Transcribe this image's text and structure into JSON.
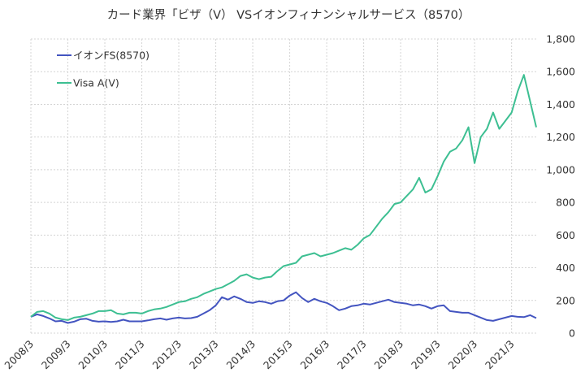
{
  "chart_data": {
    "type": "line",
    "title": "カード業界「ビザ（V） VSイオンフィナンシャルサービス（8570）",
    "xlabel": "",
    "ylabel": "",
    "ylim": [
      0,
      1800
    ],
    "yticks": [
      0,
      200,
      400,
      600,
      800,
      1000,
      1200,
      1400,
      1600,
      1800
    ],
    "ytick_labels": [
      "0",
      "200",
      "400",
      "600",
      "800",
      "1,000",
      "1,200",
      "1,400",
      "1,600",
      "1,800"
    ],
    "xlim": [
      "2008/3",
      "2021/11"
    ],
    "xtick_labels": [
      "2008/3",
      "2009/3",
      "2010/3",
      "2011/3",
      "2012/3",
      "2013/3",
      "2014/3",
      "2015/3",
      "2016/3",
      "2017/3",
      "2018/3",
      "2019/3",
      "2020/3",
      "2021/3"
    ],
    "grid": true,
    "legend_position": "top-left",
    "series": [
      {
        "name": "イオンFS(8570)",
        "color": "#4354c0",
        "points": [
          [
            "2008/3",
            100
          ],
          [
            "2008/5",
            115
          ],
          [
            "2008/7",
            105
          ],
          [
            "2008/9",
            90
          ],
          [
            "2008/11",
            72
          ],
          [
            "2009/1",
            75
          ],
          [
            "2009/3",
            62
          ],
          [
            "2009/5",
            70
          ],
          [
            "2009/7",
            85
          ],
          [
            "2009/9",
            88
          ],
          [
            "2009/11",
            75
          ],
          [
            "2010/1",
            70
          ],
          [
            "2010/3",
            72
          ],
          [
            "2010/5",
            68
          ],
          [
            "2010/7",
            72
          ],
          [
            "2010/9",
            82
          ],
          [
            "2010/11",
            72
          ],
          [
            "2011/1",
            72
          ],
          [
            "2011/3",
            72
          ],
          [
            "2011/5",
            78
          ],
          [
            "2011/7",
            85
          ],
          [
            "2011/9",
            90
          ],
          [
            "2011/11",
            82
          ],
          [
            "2012/1",
            90
          ],
          [
            "2012/3",
            95
          ],
          [
            "2012/5",
            90
          ],
          [
            "2012/7",
            92
          ],
          [
            "2012/9",
            100
          ],
          [
            "2012/11",
            120
          ],
          [
            "2013/1",
            140
          ],
          [
            "2013/3",
            170
          ],
          [
            "2013/5",
            220
          ],
          [
            "2013/7",
            205
          ],
          [
            "2013/9",
            225
          ],
          [
            "2013/11",
            210
          ],
          [
            "2014/1",
            190
          ],
          [
            "2014/3",
            185
          ],
          [
            "2014/5",
            195
          ],
          [
            "2014/7",
            190
          ],
          [
            "2014/9",
            180
          ],
          [
            "2014/11",
            195
          ],
          [
            "2015/1",
            200
          ],
          [
            "2015/3",
            230
          ],
          [
            "2015/5",
            250
          ],
          [
            "2015/7",
            215
          ],
          [
            "2015/9",
            190
          ],
          [
            "2015/11",
            210
          ],
          [
            "2016/1",
            195
          ],
          [
            "2016/3",
            185
          ],
          [
            "2016/5",
            165
          ],
          [
            "2016/7",
            140
          ],
          [
            "2016/9",
            150
          ],
          [
            "2016/11",
            165
          ],
          [
            "2017/1",
            170
          ],
          [
            "2017/3",
            180
          ],
          [
            "2017/5",
            175
          ],
          [
            "2017/7",
            185
          ],
          [
            "2017/9",
            195
          ],
          [
            "2017/11",
            205
          ],
          [
            "2018/1",
            190
          ],
          [
            "2018/3",
            185
          ],
          [
            "2018/5",
            180
          ],
          [
            "2018/7",
            170
          ],
          [
            "2018/9",
            175
          ],
          [
            "2018/11",
            165
          ],
          [
            "2019/1",
            150
          ],
          [
            "2019/3",
            165
          ],
          [
            "2019/5",
            170
          ],
          [
            "2019/7",
            135
          ],
          [
            "2019/9",
            130
          ],
          [
            "2019/11",
            125
          ],
          [
            "2020/1",
            125
          ],
          [
            "2020/3",
            110
          ],
          [
            "2020/5",
            95
          ],
          [
            "2020/7",
            80
          ],
          [
            "2020/9",
            75
          ],
          [
            "2020/11",
            85
          ],
          [
            "2021/1",
            95
          ],
          [
            "2021/3",
            105
          ],
          [
            "2021/5",
            100
          ],
          [
            "2021/7",
            98
          ],
          [
            "2021/9",
            110
          ],
          [
            "2021/11",
            92
          ]
        ]
      },
      {
        "name": "Visa A(V)",
        "color": "#3dbf92",
        "points": [
          [
            "2008/3",
            100
          ],
          [
            "2008/5",
            130
          ],
          [
            "2008/7",
            135
          ],
          [
            "2008/9",
            120
          ],
          [
            "2008/11",
            95
          ],
          [
            "2009/1",
            85
          ],
          [
            "2009/3",
            80
          ],
          [
            "2009/5",
            95
          ],
          [
            "2009/7",
            100
          ],
          [
            "2009/9",
            110
          ],
          [
            "2009/11",
            120
          ],
          [
            "2010/1",
            135
          ],
          [
            "2010/3",
            135
          ],
          [
            "2010/5",
            140
          ],
          [
            "2010/7",
            120
          ],
          [
            "2010/9",
            115
          ],
          [
            "2010/11",
            125
          ],
          [
            "2011/1",
            125
          ],
          [
            "2011/3",
            120
          ],
          [
            "2011/5",
            135
          ],
          [
            "2011/7",
            145
          ],
          [
            "2011/9",
            150
          ],
          [
            "2011/11",
            160
          ],
          [
            "2012/1",
            175
          ],
          [
            "2012/3",
            190
          ],
          [
            "2012/5",
            195
          ],
          [
            "2012/7",
            210
          ],
          [
            "2012/9",
            220
          ],
          [
            "2012/11",
            240
          ],
          [
            "2013/1",
            255
          ],
          [
            "2013/3",
            270
          ],
          [
            "2013/5",
            280
          ],
          [
            "2013/7",
            300
          ],
          [
            "2013/9",
            320
          ],
          [
            "2013/11",
            350
          ],
          [
            "2014/1",
            360
          ],
          [
            "2014/3",
            340
          ],
          [
            "2014/5",
            330
          ],
          [
            "2014/7",
            340
          ],
          [
            "2014/9",
            345
          ],
          [
            "2014/11",
            380
          ],
          [
            "2015/1",
            410
          ],
          [
            "2015/3",
            420
          ],
          [
            "2015/5",
            430
          ],
          [
            "2015/7",
            470
          ],
          [
            "2015/9",
            480
          ],
          [
            "2015/11",
            490
          ],
          [
            "2016/1",
            470
          ],
          [
            "2016/3",
            480
          ],
          [
            "2016/5",
            490
          ],
          [
            "2016/7",
            505
          ],
          [
            "2016/9",
            520
          ],
          [
            "2016/11",
            510
          ],
          [
            "2017/1",
            540
          ],
          [
            "2017/3",
            580
          ],
          [
            "2017/5",
            600
          ],
          [
            "2017/7",
            650
          ],
          [
            "2017/9",
            700
          ],
          [
            "2017/11",
            740
          ],
          [
            "2018/1",
            790
          ],
          [
            "2018/3",
            800
          ],
          [
            "2018/5",
            840
          ],
          [
            "2018/7",
            880
          ],
          [
            "2018/9",
            950
          ],
          [
            "2018/11",
            860
          ],
          [
            "2019/1",
            880
          ],
          [
            "2019/3",
            960
          ],
          [
            "2019/5",
            1050
          ],
          [
            "2019/7",
            1110
          ],
          [
            "2019/9",
            1130
          ],
          [
            "2019/11",
            1180
          ],
          [
            "2020/1",
            1260
          ],
          [
            "2020/3",
            1040
          ],
          [
            "2020/5",
            1200
          ],
          [
            "2020/7",
            1250
          ],
          [
            "2020/9",
            1350
          ],
          [
            "2020/11",
            1250
          ],
          [
            "2021/1",
            1300
          ],
          [
            "2021/3",
            1350
          ],
          [
            "2021/5",
            1480
          ],
          [
            "2021/7",
            1580
          ],
          [
            "2021/9",
            1420
          ],
          [
            "2021/11",
            1260
          ]
        ]
      }
    ]
  }
}
